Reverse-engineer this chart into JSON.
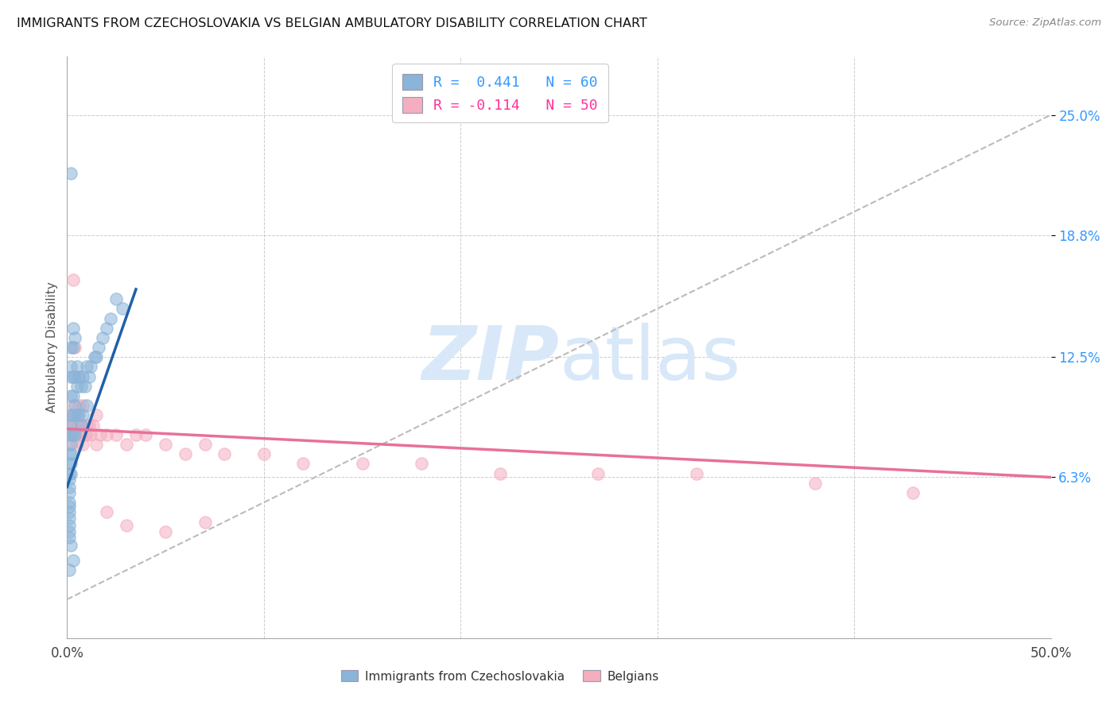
{
  "title": "IMMIGRANTS FROM CZECHOSLOVAKIA VS BELGIAN AMBULATORY DISABILITY CORRELATION CHART",
  "source": "Source: ZipAtlas.com",
  "ylabel": "Ambulatory Disability",
  "ytick_labels": [
    "6.3%",
    "12.5%",
    "18.8%",
    "25.0%"
  ],
  "ytick_values": [
    0.063,
    0.125,
    0.188,
    0.25
  ],
  "xtick_labels": [
    "0.0%",
    "50.0%"
  ],
  "xmin": 0.0,
  "xmax": 0.5,
  "ymin": -0.02,
  "ymax": 0.28,
  "color_blue": "#8ab4d8",
  "color_pink": "#f4aec0",
  "color_blue_line": "#2060a8",
  "color_pink_line": "#e8709a",
  "color_blue_text": "#3399ff",
  "color_pink_text": "#ff3399",
  "diagonal_color": "#bbbbbb",
  "watermark_color": "#d8e8f8",
  "legend_label_blue": "Immigrants from Czechoslovakia",
  "legend_label_pink": "Belgians",
  "blue_x": [
    0.001,
    0.001,
    0.001,
    0.001,
    0.001,
    0.001,
    0.001,
    0.001,
    0.001,
    0.001,
    0.001,
    0.001,
    0.001,
    0.002,
    0.002,
    0.002,
    0.002,
    0.002,
    0.002,
    0.002,
    0.002,
    0.002,
    0.002,
    0.002,
    0.003,
    0.003,
    0.003,
    0.003,
    0.003,
    0.003,
    0.004,
    0.004,
    0.004,
    0.004,
    0.005,
    0.005,
    0.005,
    0.006,
    0.006,
    0.007,
    0.007,
    0.008,
    0.008,
    0.009,
    0.01,
    0.01,
    0.011,
    0.012,
    0.014,
    0.015,
    0.016,
    0.018,
    0.02,
    0.022,
    0.025,
    0.028,
    0.002,
    0.003,
    0.002,
    0.001
  ],
  "blue_y": [
    0.075,
    0.07,
    0.065,
    0.062,
    0.058,
    0.055,
    0.05,
    0.048,
    0.045,
    0.042,
    0.038,
    0.035,
    0.032,
    0.13,
    0.115,
    0.12,
    0.105,
    0.095,
    0.09,
    0.085,
    0.08,
    0.075,
    0.07,
    0.065,
    0.14,
    0.13,
    0.115,
    0.105,
    0.095,
    0.085,
    0.135,
    0.115,
    0.1,
    0.085,
    0.12,
    0.11,
    0.095,
    0.115,
    0.095,
    0.11,
    0.09,
    0.115,
    0.095,
    0.11,
    0.12,
    0.1,
    0.115,
    0.12,
    0.125,
    0.125,
    0.13,
    0.135,
    0.14,
    0.145,
    0.155,
    0.15,
    0.22,
    0.02,
    0.028,
    0.015
  ],
  "pink_x": [
    0.001,
    0.001,
    0.002,
    0.002,
    0.003,
    0.003,
    0.004,
    0.004,
    0.005,
    0.005,
    0.006,
    0.006,
    0.007,
    0.008,
    0.008,
    0.009,
    0.01,
    0.011,
    0.012,
    0.013,
    0.015,
    0.017,
    0.02,
    0.025,
    0.03,
    0.035,
    0.04,
    0.05,
    0.06,
    0.07,
    0.08,
    0.1,
    0.12,
    0.15,
    0.18,
    0.22,
    0.27,
    0.32,
    0.38,
    0.43,
    0.003,
    0.004,
    0.006,
    0.008,
    0.01,
    0.015,
    0.02,
    0.03,
    0.05,
    0.07
  ],
  "pink_y": [
    0.09,
    0.08,
    0.095,
    0.085,
    0.1,
    0.09,
    0.095,
    0.085,
    0.09,
    0.08,
    0.1,
    0.085,
    0.085,
    0.09,
    0.08,
    0.085,
    0.085,
    0.09,
    0.085,
    0.09,
    0.08,
    0.085,
    0.085,
    0.085,
    0.08,
    0.085,
    0.085,
    0.08,
    0.075,
    0.08,
    0.075,
    0.075,
    0.07,
    0.07,
    0.07,
    0.065,
    0.065,
    0.065,
    0.06,
    0.055,
    0.165,
    0.13,
    0.115,
    0.1,
    0.09,
    0.095,
    0.045,
    0.038,
    0.035,
    0.04
  ],
  "blue_trend_x": [
    0.0,
    0.035
  ],
  "blue_trend_y": [
    0.058,
    0.16
  ],
  "pink_trend_x": [
    0.0,
    0.5
  ],
  "pink_trend_y": [
    0.088,
    0.063
  ]
}
